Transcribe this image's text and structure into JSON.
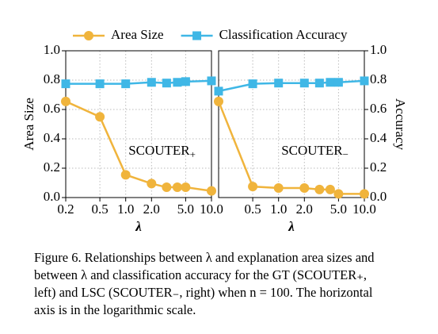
{
  "chart_data": [
    {
      "type": "line",
      "ylabel": "Area Size",
      "xlabel": "λ",
      "annotation": {
        "text": "SCOUTER",
        "subscript": "+"
      },
      "x": [
        0.2,
        0.5,
        1,
        2,
        3,
        4,
        5,
        10
      ],
      "series": [
        {
          "name": "Area Size",
          "color": "#f0b43c",
          "marker": "circle",
          "values": [
            0.655,
            0.55,
            0.155,
            0.095,
            0.07,
            0.07,
            0.07,
            0.045
          ]
        },
        {
          "name": "Classification Accuracy",
          "color": "#3fb7e6",
          "marker": "square",
          "values": [
            0.775,
            0.775,
            0.775,
            0.785,
            0.78,
            0.785,
            0.79,
            0.795
          ]
        }
      ],
      "xscale": "log",
      "xlim": [
        0.2,
        10
      ],
      "xticks": [
        0.2,
        0.5,
        {
          "value": 1,
          "label": "1.0"
        },
        {
          "value": 2,
          "label": "2.0"
        },
        {
          "value": 5,
          "label": "5.0"
        },
        {
          "value": 10,
          "label": "10.0"
        }
      ],
      "ylim": [
        0,
        1
      ],
      "yticks": [
        {
          "value": 0,
          "label": "0.0"
        },
        0.2,
        0.4,
        0.6,
        0.8,
        {
          "value": 1,
          "label": "1.0"
        }
      ],
      "yaxis_side": "left",
      "grid": true
    },
    {
      "type": "line",
      "ylabel": "Accuracy",
      "xlabel": "λ",
      "annotation": {
        "text": "SCOUTER",
        "subscript": "−"
      },
      "x": [
        0.2,
        0.5,
        1,
        2,
        3,
        4,
        5,
        10
      ],
      "series": [
        {
          "color": "#f0b43c",
          "marker": "circle",
          "values": [
            0.655,
            0.075,
            0.065,
            0.065,
            0.055,
            0.055,
            0.025,
            0.025
          ]
        },
        {
          "color": "#3fb7e6",
          "marker": "square",
          "values": [
            0.725,
            0.775,
            0.78,
            0.78,
            0.78,
            0.785,
            0.785,
            0.795
          ]
        }
      ],
      "xscale": "log",
      "xlim": [
        0.2,
        10
      ],
      "xticks": [
        0.5,
        {
          "value": 1,
          "label": "1.0"
        },
        {
          "value": 2,
          "label": "2.0"
        },
        {
          "value": 5,
          "label": "5.0"
        },
        {
          "value": 10,
          "label": "10.0"
        }
      ],
      "ylim": [
        0,
        1
      ],
      "yticks": [
        {
          "value": 0,
          "label": "0.0"
        },
        0.2,
        0.4,
        0.6,
        0.8,
        {
          "value": 1,
          "label": "1.0"
        }
      ],
      "yaxis_side": "right",
      "grid": true
    }
  ],
  "caption": [
    "Figure 6. Relationships between λ and explanation area sizes and",
    "between λ and classification accuracy for the GT (SCOUTER₊,",
    "left) and LSC (SCOUTER₋, right) when n = 100. The horizontal",
    "axis is in the logarithmic scale."
  ]
}
